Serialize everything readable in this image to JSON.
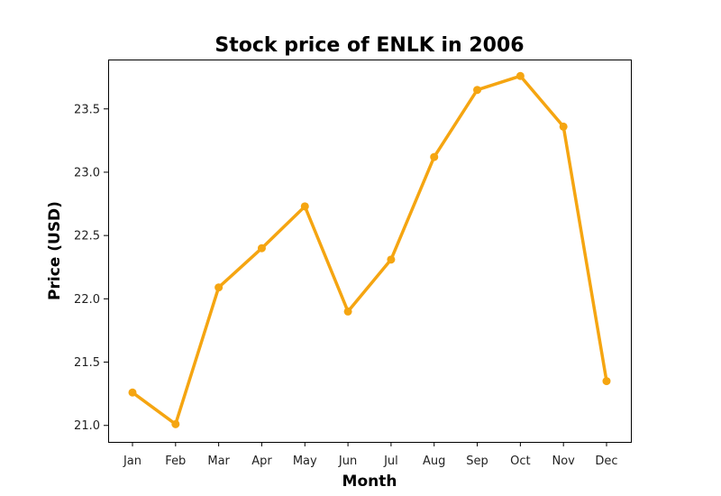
{
  "chart_data": {
    "type": "line",
    "title": "Stock price of ENLK in 2006",
    "xlabel": "Month",
    "ylabel": "Price (USD)",
    "categories": [
      "Jan",
      "Feb",
      "Mar",
      "Apr",
      "May",
      "Jun",
      "Jul",
      "Aug",
      "Sep",
      "Oct",
      "Nov",
      "Dec"
    ],
    "series": [
      {
        "values": [
          21.26,
          21.01,
          22.09,
          22.4,
          22.73,
          21.9,
          22.31,
          23.12,
          23.65,
          23.76,
          23.36,
          21.35
        ],
        "color": "#f5a511"
      }
    ],
    "yticks": [
      "21.0",
      "21.5",
      "22.0",
      "22.5",
      "23.0",
      "23.5"
    ],
    "ylim": [
      20.87,
      23.89
    ],
    "grid": false,
    "legend": "none"
  }
}
